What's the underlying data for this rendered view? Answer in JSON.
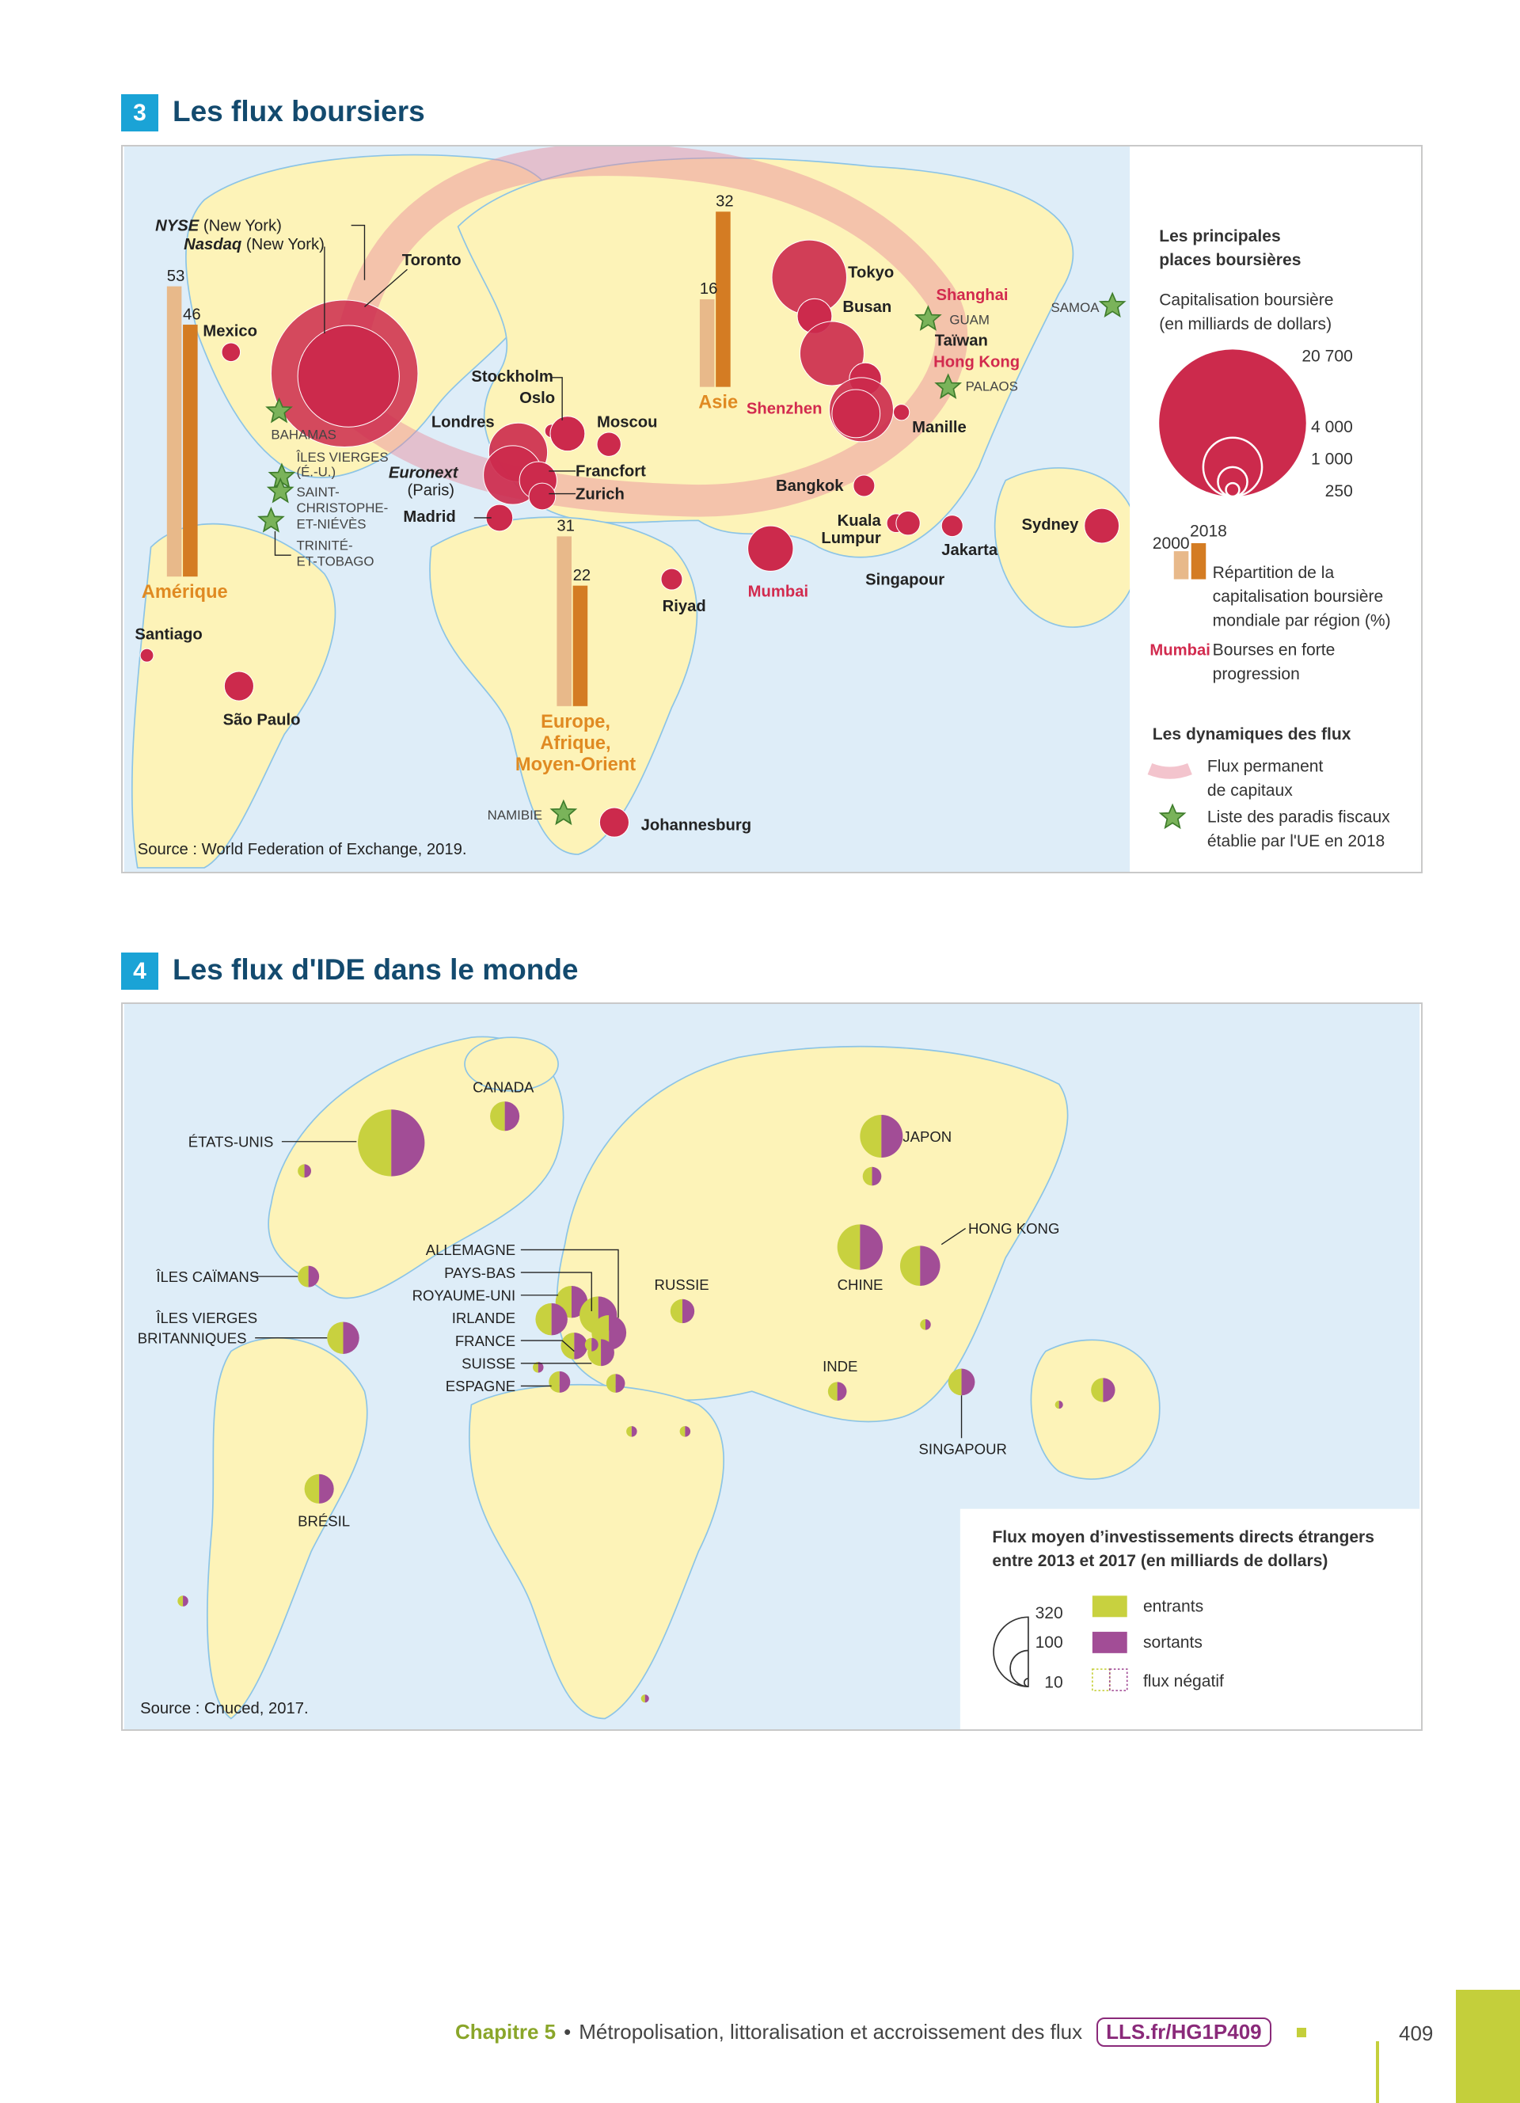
{
  "section3": {
    "number": "3",
    "title": "Les flux boursiers",
    "labels": {
      "nyse": "NYSE",
      "nyse_city": "(New York)",
      "nasdaq": "Nasdaq",
      "nasdaq_city": "(New York)",
      "toronto": "Toronto",
      "mexico": "Mexico",
      "santiago": "Santiago",
      "sao_paulo": "São Paulo",
      "londres": "Londres",
      "stockholm": "Stockholm",
      "oslo": "Oslo",
      "moscou": "Moscou",
      "euronext": "Euronext",
      "euronext_city": "(Paris)",
      "francfort": "Francfort",
      "zurich": "Zurich",
      "madrid": "Madrid",
      "riyad": "Riyad",
      "johannesburg": "Johannesburg",
      "mumbai": "Mumbai",
      "tokyo": "Tokyo",
      "busan": "Busan",
      "shanghai": "Shanghai",
      "taiwan": "Taïwan",
      "hong_kong": "Hong Kong",
      "shenzhen": "Shenzhen",
      "manille": "Manille",
      "bangkok": "Bangkok",
      "kuala": "Kuala",
      "lumpur": "Lumpur",
      "singapour": "Singapour",
      "jakarta": "Jakarta",
      "sydney": "Sydney"
    },
    "tax_havens": {
      "bahamas": "BAHAMAS",
      "iles_vierges_1": "ÎLES VIERGES",
      "iles_vierges_2": "(É.-U.)",
      "saint_christophe_1": "SAINT-",
      "saint_christophe_2": "CHRISTOPHE-",
      "saint_christophe_3": "ET-NIÉVÈS",
      "trinite_1": "TRINITÉ-",
      "trinite_2": "ET-TOBAGO",
      "guam": "GUAM",
      "palaos": "PALAOS",
      "samoa": "SAMOA",
      "namibie": "NAMIBIE"
    },
    "regions": [
      {
        "name": "Amérique",
        "v2000": 53,
        "v2018": 46
      },
      {
        "name": "Asie",
        "v2000": 16,
        "v2018": 32
      },
      {
        "name_lines": [
          "Europe,",
          "Afrique,",
          "Moyen-Orient"
        ],
        "v2000": 31,
        "v2018": 22
      }
    ],
    "source": "Source : World Federation of Exchange, 2019.",
    "legend": {
      "title_1": "Les principales",
      "title_2": "places boursières",
      "cap_1": "Capitalisation boursière",
      "cap_2": "(en milliards de dollars)",
      "sizes": [
        "20 700",
        "4 000",
        "1 000",
        "250"
      ],
      "year_2000": "2000",
      "year_2018": "2018",
      "bars_1": "Répartition de la",
      "bars_2": "capitalisation boursière",
      "bars_3": "mondiale par région (%)",
      "mumbai_sample": "Mumbai",
      "strong_1": "Bourses en forte",
      "strong_2": "progression",
      "dyn_title": "Les dynamiques des flux",
      "flux_1": "Flux permanent",
      "flux_2": "de capitaux",
      "haven_1": "Liste des paradis fiscaux",
      "haven_2": "établie par l'UE en 2018"
    },
    "colors": {
      "bourse": "#cc2a4c",
      "bar2000": "#e8b98a",
      "bar2018": "#d47c23",
      "flux": "#e88a9c",
      "star": "#7ab35a",
      "land": "#fdf3b8",
      "sea": "#deedf8"
    }
  },
  "section4": {
    "number": "4",
    "title": "Les flux d'IDE dans le monde",
    "countries": {
      "etats_unis": "ÉTATS-UNIS",
      "canada": "CANADA",
      "japon": "JAPON",
      "hong_kong": "HONG KONG",
      "chine": "CHINE",
      "russie": "RUSSIE",
      "iles_caimans": "ÎLES CAÏMANS",
      "ivb_1": "ÎLES VIERGES",
      "ivb_2": "BRITANNIQUES",
      "allemagne": "ALLEMAGNE",
      "pays_bas": "PAYS-BAS",
      "royaume_uni": "ROYAUME-UNI",
      "irlande": "IRLANDE",
      "france": "FRANCE",
      "suisse": "SUISSE",
      "espagne": "ESPAGNE",
      "inde": "INDE",
      "singapour": "SINGAPOUR",
      "bresil": "BRÉSIL"
    },
    "source": "Source : Cnuced, 2017.",
    "legend": {
      "title_1": "Flux moyen d’investissements directs étrangers",
      "title_2": "entre 2013 et 2017 (en milliards de dollars)",
      "sizes": [
        "320",
        "100",
        "10"
      ],
      "entrants": "entrants",
      "sortants": "sortants",
      "negatif": "flux négatif"
    },
    "colors": {
      "entrants": "#c8d13f",
      "sortants": "#a24d96"
    }
  },
  "footer": {
    "chapter": "Chapitre 5",
    "separator": "•",
    "title": "Métropolisation, littoralisation et accroissement des flux",
    "link": "LLS.fr/HG1P409",
    "page": "409"
  }
}
